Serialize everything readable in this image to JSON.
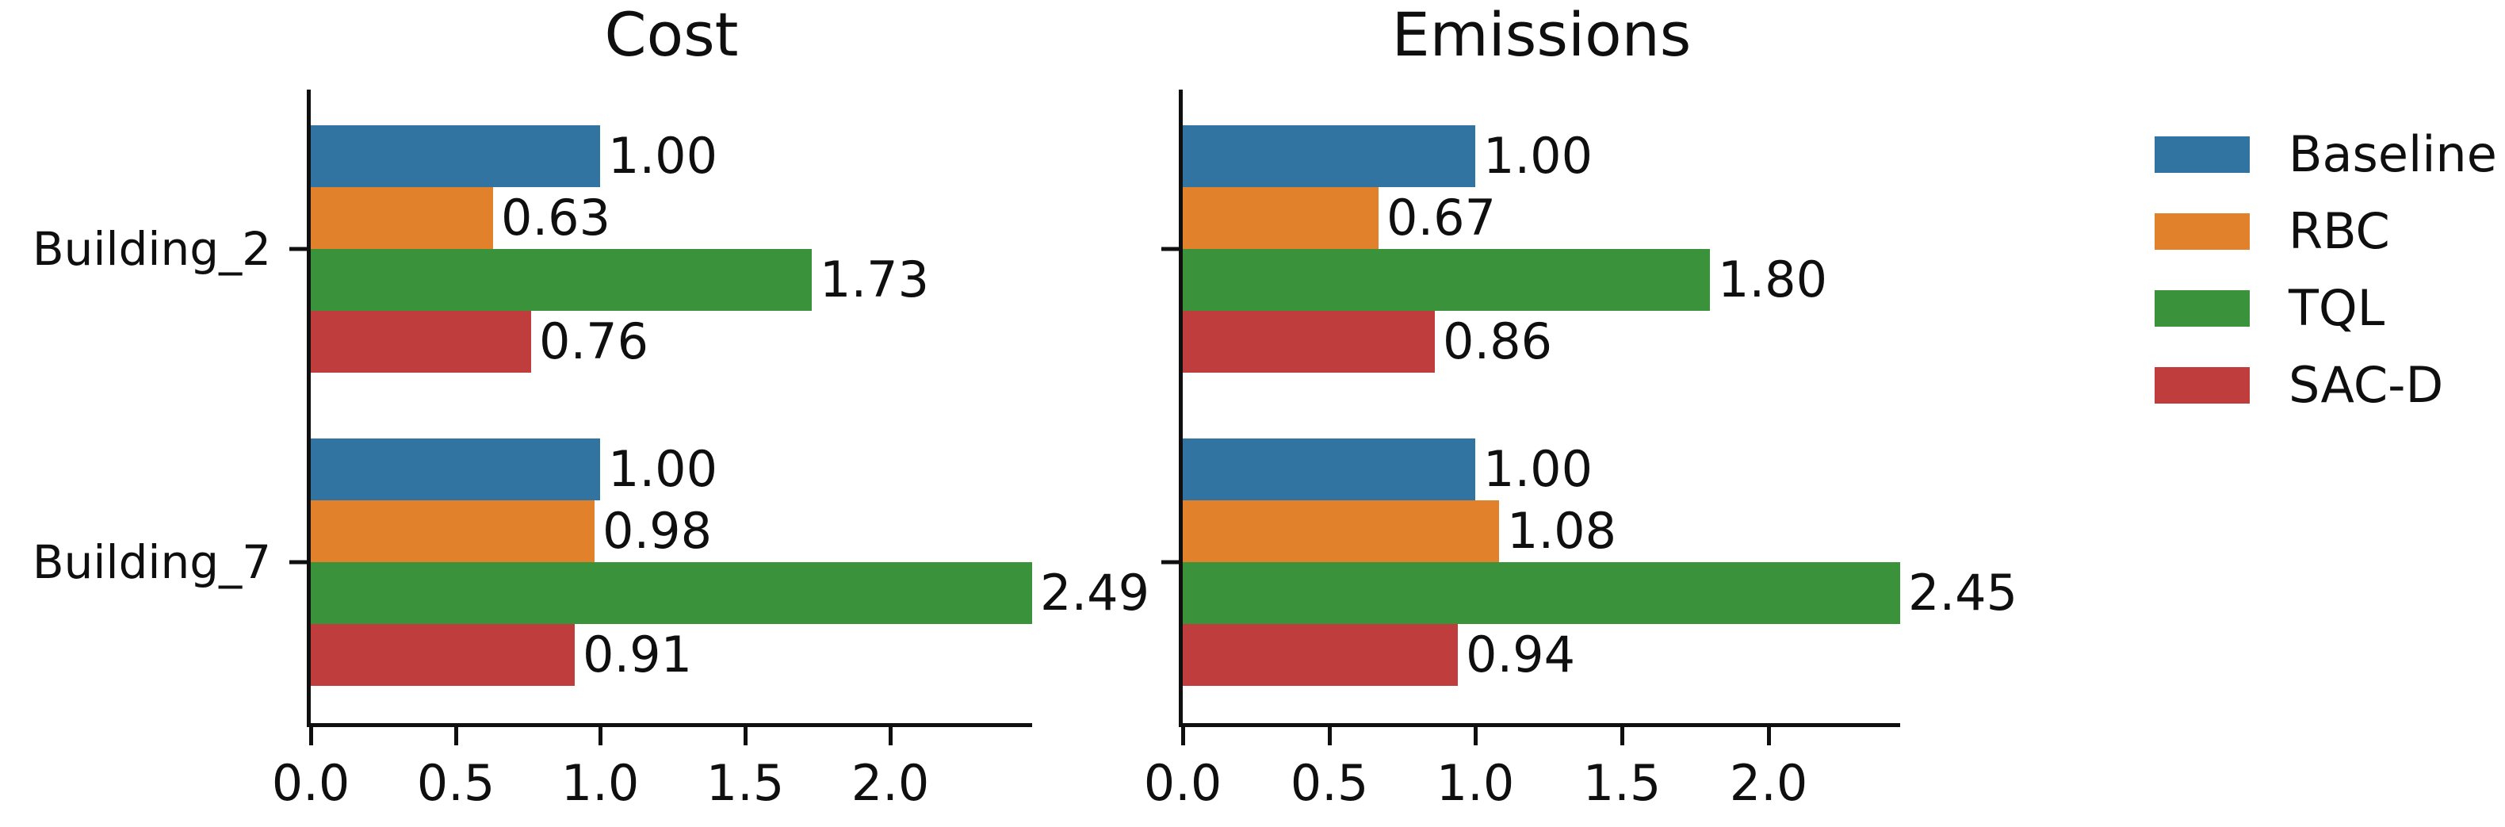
{
  "figure": {
    "background": "#ffffff",
    "text_color": "#0f0f0f"
  },
  "chart_data": [
    {
      "type": "bar",
      "orientation": "horizontal",
      "title": "Cost",
      "categories": [
        "Building_2",
        "Building_7"
      ],
      "series": [
        {
          "name": "Baseline",
          "color": "#3274a1",
          "values": [
            1.0,
            1.0
          ],
          "labels": [
            "1.00",
            "1.00"
          ]
        },
        {
          "name": "RBC",
          "color": "#e1812c",
          "values": [
            0.63,
            0.98
          ],
          "labels": [
            "0.63",
            "0.98"
          ]
        },
        {
          "name": "TQL",
          "color": "#3a923a",
          "values": [
            1.73,
            2.49
          ],
          "labels": [
            "1.73",
            "2.49"
          ]
        },
        {
          "name": "SAC-D",
          "color": "#c03d3e",
          "values": [
            0.76,
            0.91
          ],
          "labels": [
            "0.76",
            "0.91"
          ]
        }
      ],
      "x_tick_labels": [
        "0.0",
        "0.5",
        "1.0",
        "1.5",
        "2.0"
      ],
      "xlim": [
        0,
        2.49
      ],
      "grid": false,
      "show_category_labels": true
    },
    {
      "type": "bar",
      "orientation": "horizontal",
      "title": "Emissions",
      "categories": [
        "Building_2",
        "Building_7"
      ],
      "series": [
        {
          "name": "Baseline",
          "color": "#3274a1",
          "values": [
            1.0,
            1.0
          ],
          "labels": [
            "1.00",
            "1.00"
          ]
        },
        {
          "name": "RBC",
          "color": "#e1812c",
          "values": [
            0.67,
            1.08
          ],
          "labels": [
            "0.67",
            "1.08"
          ]
        },
        {
          "name": "TQL",
          "color": "#3a923a",
          "values": [
            1.8,
            2.45
          ],
          "labels": [
            "1.80",
            "2.45"
          ]
        },
        {
          "name": "SAC-D",
          "color": "#c03d3e",
          "values": [
            0.86,
            0.94
          ],
          "labels": [
            "0.86",
            "0.94"
          ]
        }
      ],
      "x_tick_labels": [
        "0.0",
        "0.5",
        "1.0",
        "1.5",
        "2.0"
      ],
      "xlim": [
        0,
        2.45
      ],
      "grid": false,
      "show_category_labels": false
    }
  ],
  "legend": {
    "position": "outside-right",
    "frame": false,
    "entries": [
      {
        "label": "Baseline",
        "color": "#3274a1"
      },
      {
        "label": "RBC",
        "color": "#e1812c"
      },
      {
        "label": "TQL",
        "color": "#3a923a"
      },
      {
        "label": "SAC-D",
        "color": "#c03d3e"
      }
    ]
  }
}
